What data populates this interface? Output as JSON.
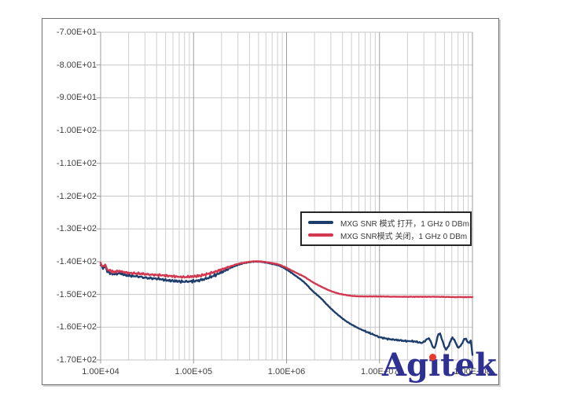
{
  "watermark": {
    "full_text": "Agitek",
    "part1": "Ag",
    "part_i_dotless": "ı",
    "part2": "tek",
    "color": "#2e3192",
    "dot_color": "#e8392e"
  },
  "chart_data": {
    "type": "line",
    "title": "",
    "xlabel": "",
    "ylabel": "",
    "x_scale": "log",
    "x_range": [
      10000,
      100000000
    ],
    "y_range": [
      -170,
      -70
    ],
    "grid": true,
    "legend_position": "middle-right",
    "x_tick_labels": [
      "1.00E+04",
      "1.00E+05",
      "1.00E+06",
      "1.00E+07",
      "1.00E+08"
    ],
    "y_tick_labels": [
      "-7.00E+01",
      "-8.00E+01",
      "-9.00E+01",
      "-1.00E+02",
      "-1.10E+02",
      "-1.20E+02",
      "-1.30E+02",
      "-1.40E+02",
      "-1.50E+02",
      "-1.60E+02",
      "-1.70E+02"
    ],
    "series": [
      {
        "name": "MXG SNR 模式 打开，1 GHz 0 DBm",
        "color": "#1d3e6d",
        "points": [
          [
            10000,
            -140.8
          ],
          [
            10600,
            -141.9
          ],
          [
            11200,
            -141.4
          ],
          [
            11800,
            -143.0
          ],
          [
            12600,
            -143.4
          ],
          [
            14000,
            -143.8
          ],
          [
            16000,
            -143.5
          ],
          [
            18000,
            -144.0
          ],
          [
            21000,
            -144.3
          ],
          [
            25000,
            -144.5
          ],
          [
            30000,
            -144.9
          ],
          [
            36000,
            -145.1
          ],
          [
            43000,
            -145.3
          ],
          [
            52000,
            -145.7
          ],
          [
            63000,
            -145.9
          ],
          [
            76000,
            -146.1
          ],
          [
            91000,
            -146.0
          ],
          [
            110000,
            -145.8
          ],
          [
            135000,
            -145.2
          ],
          [
            165000,
            -144.3
          ],
          [
            200000,
            -143.2
          ],
          [
            245000,
            -142.0
          ],
          [
            300000,
            -141.0
          ],
          [
            370000,
            -140.3
          ],
          [
            450000,
            -140.0
          ],
          [
            550000,
            -140.1
          ],
          [
            680000,
            -140.6
          ],
          [
            830000,
            -141.2
          ],
          [
            1000000,
            -142.4
          ],
          [
            1250000,
            -144.3
          ],
          [
            1550000,
            -146.3
          ],
          [
            1900000,
            -148.9
          ],
          [
            2350000,
            -151.2
          ],
          [
            2900000,
            -153.9
          ],
          [
            3600000,
            -156.3
          ],
          [
            4400000,
            -158.2
          ],
          [
            5400000,
            -159.7
          ],
          [
            6700000,
            -161.0
          ],
          [
            8200000,
            -162.0
          ],
          [
            10000000,
            -163.0
          ],
          [
            12500000,
            -163.6
          ],
          [
            15500000,
            -163.9
          ],
          [
            19000000,
            -164.2
          ],
          [
            23000000,
            -164.3
          ],
          [
            28000000,
            -164.7
          ],
          [
            31000000,
            -164.2
          ],
          [
            34000000,
            -163.4
          ],
          [
            39000000,
            -166.3
          ],
          [
            44000000,
            -161.9
          ],
          [
            52000000,
            -166.7
          ],
          [
            61000000,
            -163.3
          ],
          [
            71000000,
            -166.2
          ],
          [
            83000000,
            -163.5
          ],
          [
            91000000,
            -164.9
          ],
          [
            96000000,
            -164.3
          ],
          [
            100000000,
            -168.4
          ]
        ],
        "noise": [
          {
            "from": 10000,
            "to": 240000,
            "amp": 0.5
          },
          {
            "from": 240000,
            "to": 900000,
            "amp": 0.12
          },
          {
            "from": 900000,
            "to": 7000000,
            "amp": 0.1
          },
          {
            "from": 7000000,
            "to": 30000000,
            "amp": 0.25
          },
          {
            "from": 30000000,
            "to": 100000000,
            "amp": 0.3
          }
        ]
      },
      {
        "name": "MXG SNR模式 关闭，1 GHz 0 DBm",
        "color": "#d23850",
        "points": [
          [
            10000,
            -140.5
          ],
          [
            10600,
            -141.5
          ],
          [
            11200,
            -141.0
          ],
          [
            11800,
            -142.4
          ],
          [
            12600,
            -142.8
          ],
          [
            14000,
            -143.1
          ],
          [
            16000,
            -142.9
          ],
          [
            18000,
            -143.2
          ],
          [
            21000,
            -143.5
          ],
          [
            25000,
            -143.6
          ],
          [
            30000,
            -143.8
          ],
          [
            36000,
            -144.0
          ],
          [
            43000,
            -144.1
          ],
          [
            52000,
            -144.3
          ],
          [
            63000,
            -144.5
          ],
          [
            76000,
            -144.7
          ],
          [
            91000,
            -144.6
          ],
          [
            110000,
            -144.4
          ],
          [
            135000,
            -143.9
          ],
          [
            165000,
            -143.2
          ],
          [
            200000,
            -142.4
          ],
          [
            245000,
            -141.5
          ],
          [
            300000,
            -140.7
          ],
          [
            370000,
            -140.2
          ],
          [
            450000,
            -139.9
          ],
          [
            550000,
            -140.0
          ],
          [
            680000,
            -140.4
          ],
          [
            830000,
            -140.9
          ],
          [
            1000000,
            -141.9
          ],
          [
            1250000,
            -143.3
          ],
          [
            1550000,
            -144.6
          ],
          [
            1900000,
            -146.2
          ],
          [
            2350000,
            -147.6
          ],
          [
            2900000,
            -148.8
          ],
          [
            3600000,
            -149.7
          ],
          [
            4400000,
            -150.2
          ],
          [
            5400000,
            -150.5
          ],
          [
            6700000,
            -150.6
          ],
          [
            8200000,
            -150.6
          ],
          [
            10000000,
            -150.6
          ],
          [
            15000000,
            -150.7
          ],
          [
            25000000,
            -150.7
          ],
          [
            40000000,
            -150.7
          ],
          [
            65000000,
            -150.8
          ],
          [
            100000000,
            -150.8
          ]
        ],
        "noise": [
          {
            "from": 10000,
            "to": 240000,
            "amp": 0.45
          },
          {
            "from": 240000,
            "to": 1500000,
            "amp": 0.1
          },
          {
            "from": 1500000,
            "to": 100000000,
            "amp": 0.08
          }
        ]
      }
    ]
  }
}
